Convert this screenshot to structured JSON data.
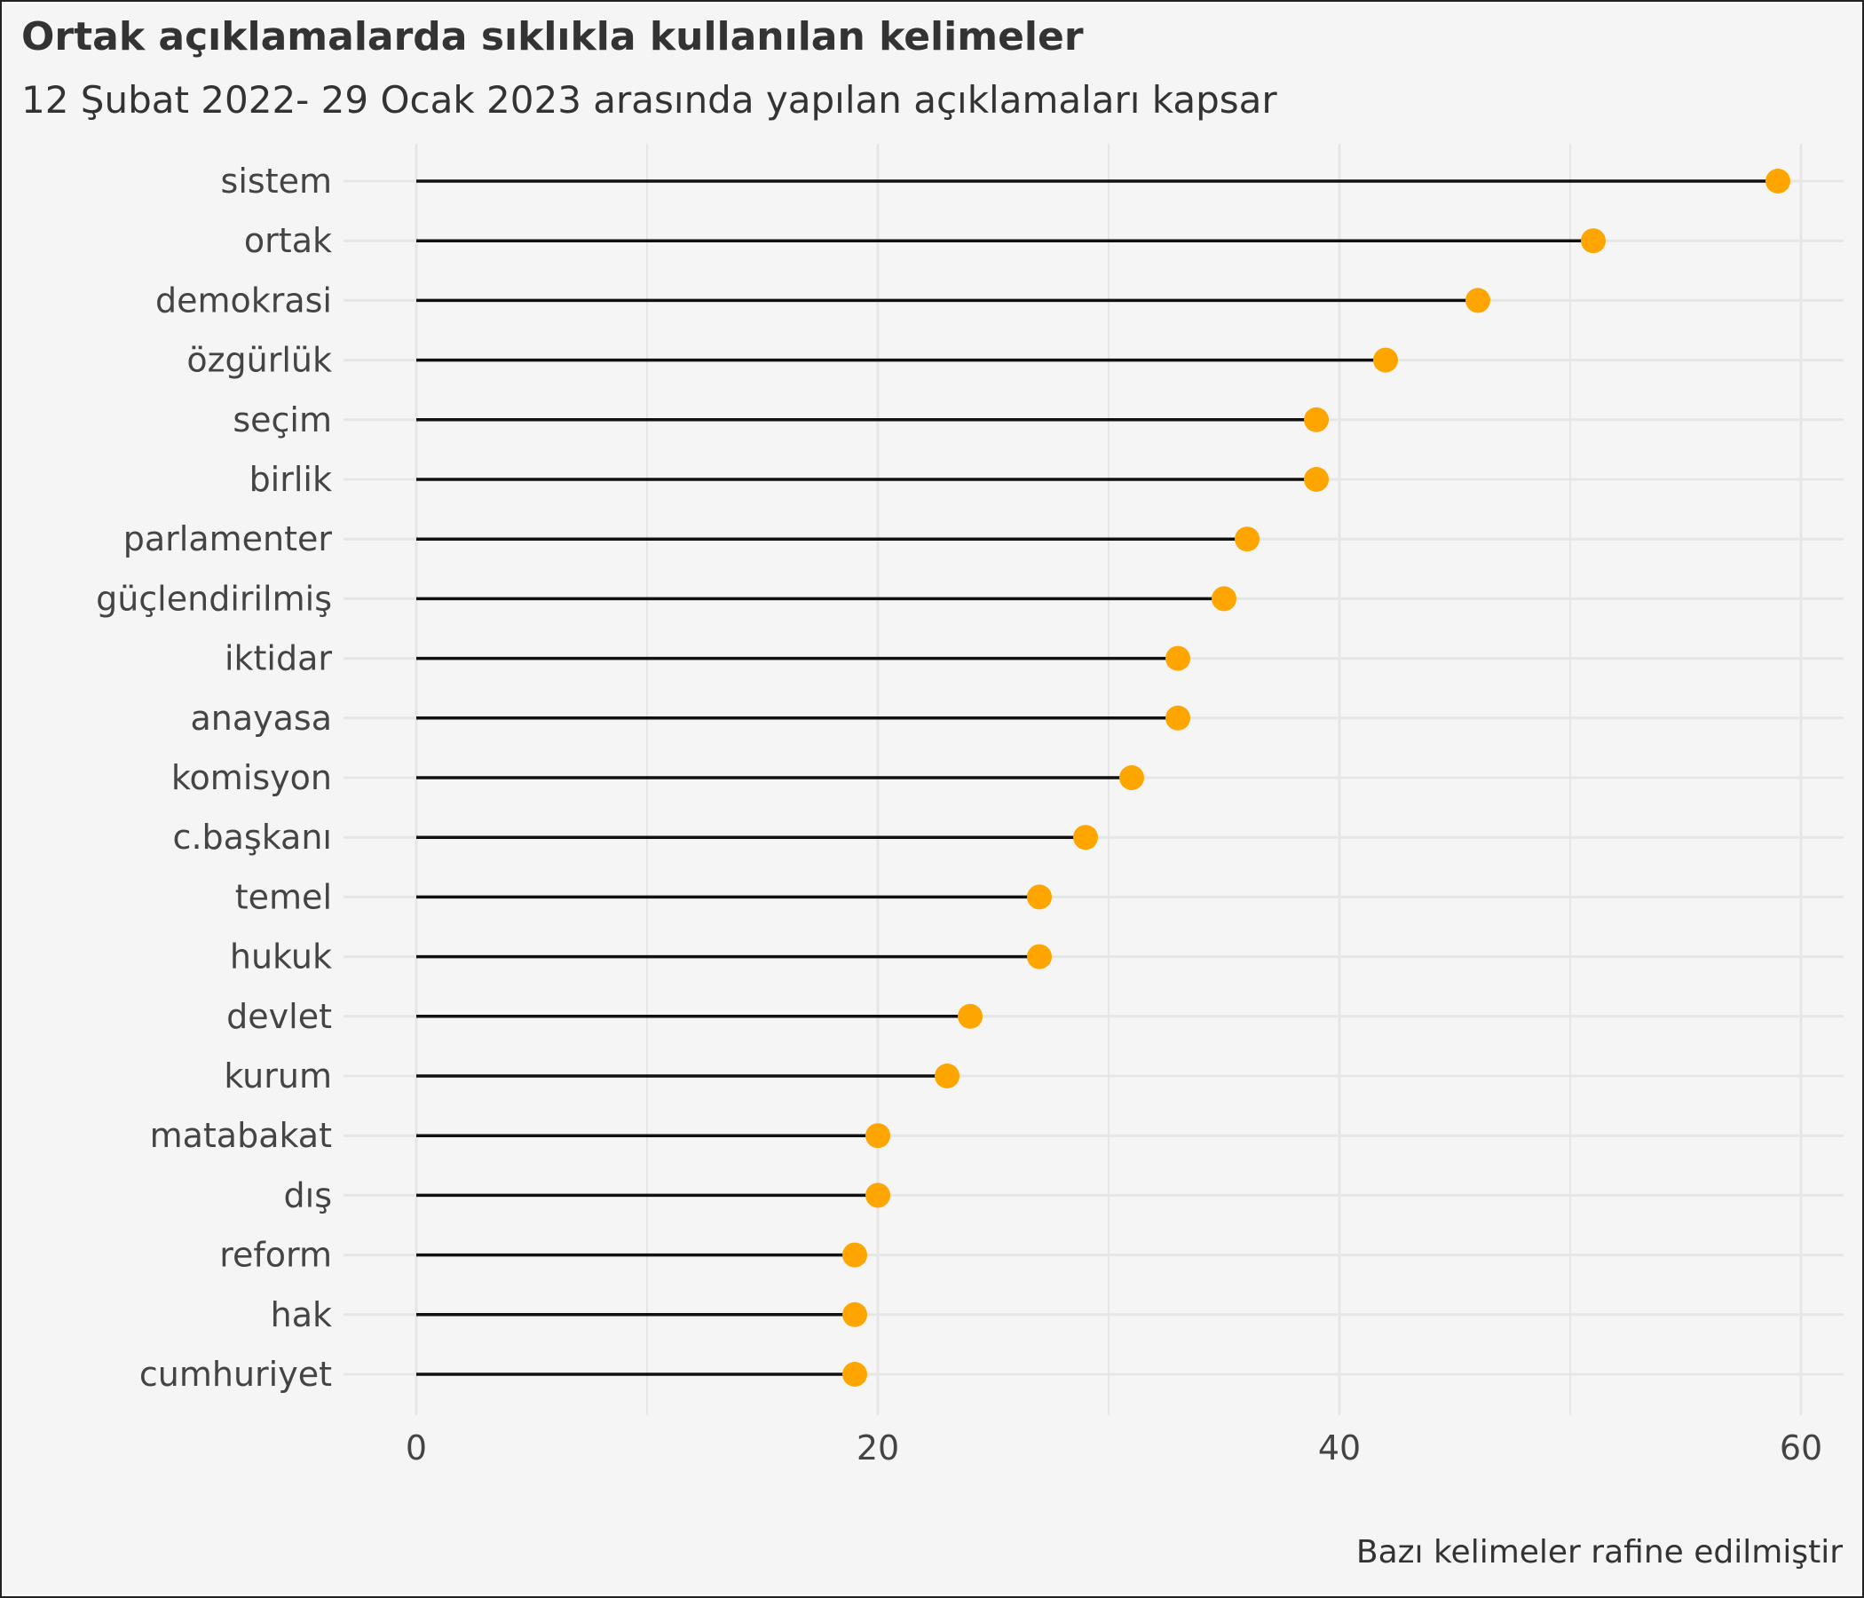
{
  "chart_data": {
    "type": "lollipop",
    "title": "Ortak açıklamalarda sıklıkla kullanılan kelimeler",
    "subtitle": "12 Şubat 2022- 29 Ocak 2023 arasında yapılan açıklamaları kapsar",
    "caption": "Bazı kelimeler rafine edilmiştir",
    "xlabel": "",
    "ylabel": "",
    "xlim": [
      0,
      61
    ],
    "x_ticks": [
      0,
      20,
      40,
      60
    ],
    "grid": true,
    "categories": [
      "sistem",
      "ortak",
      "demokrasi",
      "özgürlük",
      "seçim",
      "birlik",
      "parlamenter",
      "güçlendirilmiş",
      "iktidar",
      "anayasa",
      "komisyon",
      "c.başkanı",
      "temel",
      "hukuk",
      "devlet",
      "kurum",
      "matabakat",
      "dış",
      "reform",
      "hak",
      "cumhuriyet"
    ],
    "values": [
      59,
      51,
      46,
      42,
      39,
      39,
      36,
      35,
      33,
      33,
      31,
      29,
      27,
      27,
      24,
      23,
      20,
      20,
      19,
      19,
      19
    ],
    "colors": {
      "point": "#FFA500",
      "stem": "#111111",
      "grid": "#e6e6e6",
      "background": "#f5f5f5"
    }
  }
}
